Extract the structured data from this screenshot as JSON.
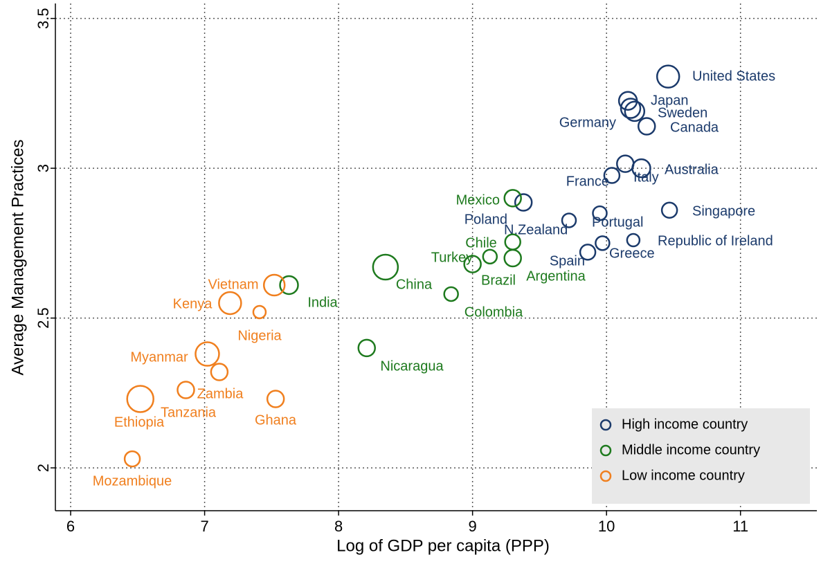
{
  "chart_data": {
    "type": "scatter",
    "x_label": "Log of GDP per capita (PPP)",
    "y_label": "Average Management Practices",
    "xlim": [
      5.886,
      11.57
    ],
    "ylim": [
      1.857,
      3.55
    ],
    "xticks": [
      6,
      7,
      8,
      9,
      10,
      11
    ],
    "yticks": [
      2,
      2.5,
      3,
      3.5
    ],
    "grid": true,
    "legend": "lower right",
    "series": [
      {
        "name": "High income country",
        "color": "#1b3a6b",
        "labels": [
          "United States",
          "Japan",
          "Germany",
          "Sweden",
          "Canada",
          "France",
          "Italy",
          "Australia",
          "Singapore",
          "Portugal",
          "Poland",
          "N.Zealand",
          "Republic of Ireland",
          "Greece",
          "Spain"
        ],
        "x": [
          10.46,
          10.16,
          10.18,
          10.21,
          10.3,
          10.04,
          10.14,
          10.26,
          10.47,
          9.95,
          9.38,
          9.72,
          10.2,
          9.97,
          9.86
        ],
        "values": [
          3.306,
          3.225,
          3.2,
          3.19,
          3.14,
          2.976,
          3.015,
          3.0,
          2.86,
          2.85,
          2.886,
          2.826,
          2.76,
          2.75,
          2.72
        ],
        "sizes": [
          16,
          13,
          14,
          14,
          12,
          11,
          12,
          13,
          11,
          10,
          12,
          10,
          9,
          10,
          11
        ]
      },
      {
        "name": "Middle income country",
        "color": "#1e7a1e",
        "labels": [
          "Mexico",
          "Chile",
          "Turkey",
          "Brazil",
          "Argentina",
          "China",
          "Colombia",
          "Nicaragua",
          "India"
        ],
        "x": [
          9.3,
          9.3,
          9.13,
          9.0,
          9.3,
          8.35,
          8.84,
          8.21,
          7.63
        ],
        "values": [
          2.9,
          2.754,
          2.705,
          2.68,
          2.7,
          2.67,
          2.58,
          2.4,
          2.61
        ],
        "sizes": [
          12,
          11,
          10,
          12,
          12,
          18,
          10,
          12,
          13
        ]
      },
      {
        "name": "Low income country",
        "color": "#f07f1e",
        "labels": [
          "Vietnam",
          "Kenya",
          "Nigeria",
          "Myanmar",
          "Zambia",
          "Tanzania",
          "Ethiopia",
          "Ghana",
          "Mozambique"
        ],
        "x": [
          7.52,
          7.19,
          7.41,
          7.02,
          7.11,
          6.86,
          6.52,
          7.53,
          6.46
        ],
        "values": [
          2.61,
          2.55,
          2.52,
          2.38,
          2.32,
          2.26,
          2.23,
          2.23,
          2.03
        ],
        "sizes": [
          15,
          16,
          9,
          17,
          12,
          12,
          19,
          12,
          11
        ]
      }
    ]
  }
}
